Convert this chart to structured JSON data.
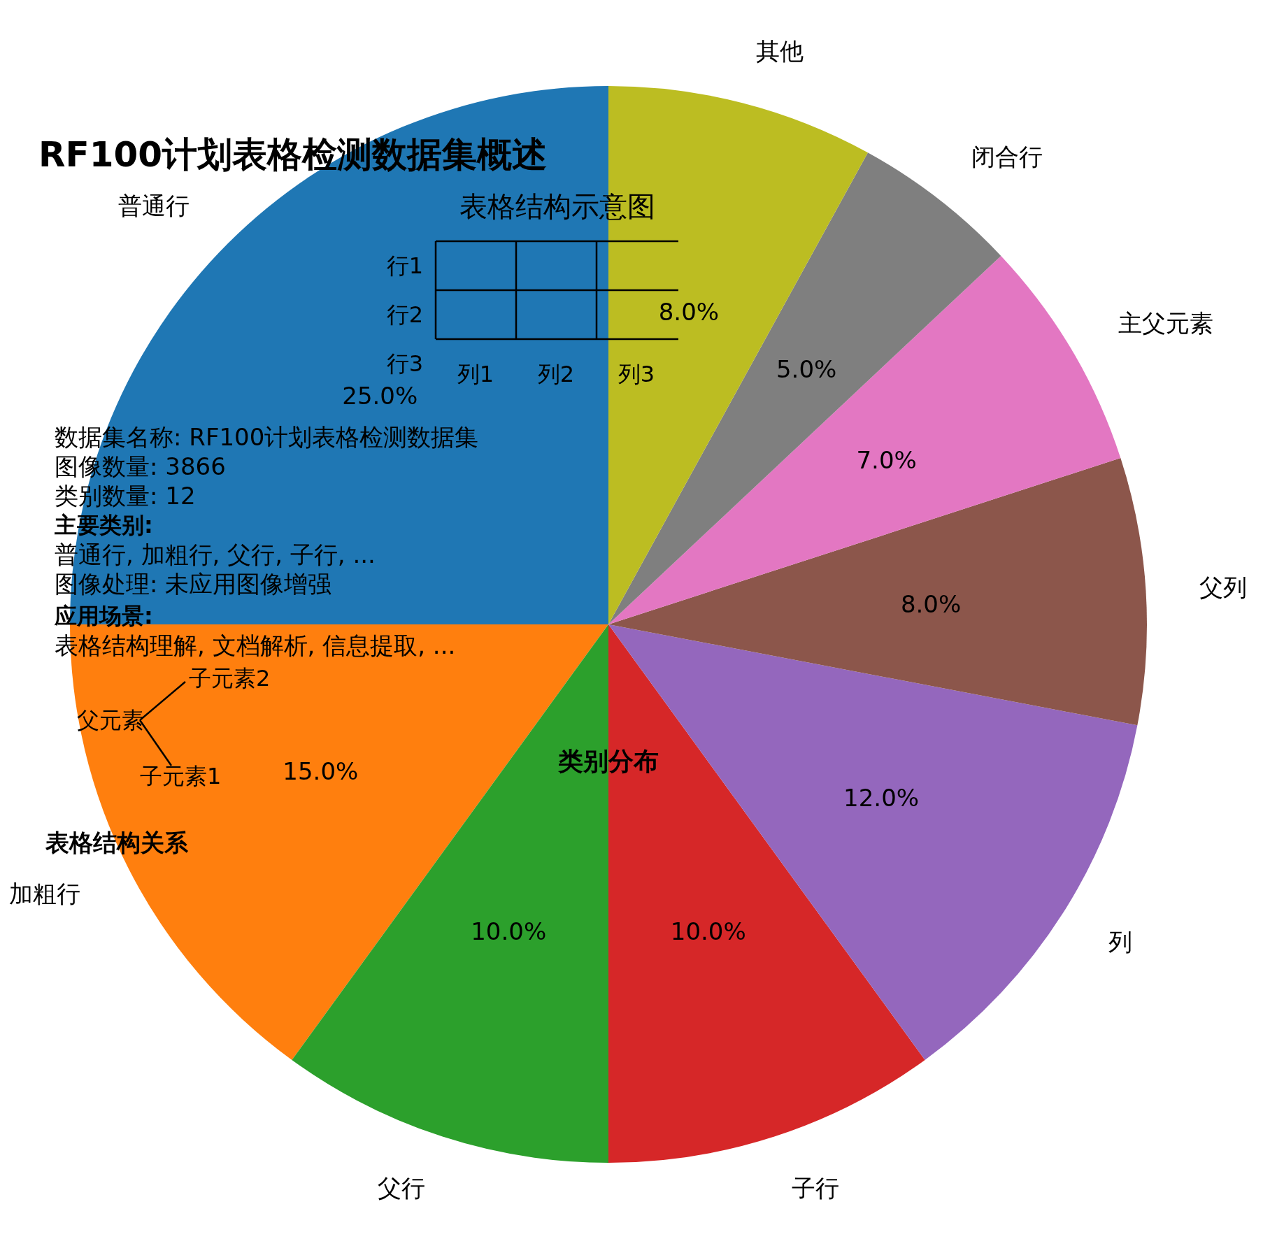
{
  "chart_data": {
    "type": "pie",
    "title": "RF100计划表格检测数据集概述",
    "categories": [
      "普通行",
      "加粗行",
      "父行",
      "子行",
      "列",
      "父列",
      "主父元素",
      "闭合行",
      "其他"
    ],
    "values": [
      25,
      15,
      10,
      10,
      12,
      8,
      7,
      5,
      8
    ],
    "colors": [
      "#1f77b4",
      "#ff7f0e",
      "#2ca02c",
      "#d62728",
      "#9467bd",
      "#8c564b",
      "#e377c2",
      "#7f7f7f",
      "#bcbd22"
    ],
    "value_labels": [
      "25.0%",
      "15.0%",
      "10.0%",
      "10.0%",
      "12.0%",
      "8.0%",
      "7.0%",
      "5.0%",
      "8.0%"
    ],
    "annotations": [
      "表格结构示意图",
      "行1",
      "行2",
      "行3",
      "列1",
      "列2",
      "列3",
      "数据集名称: RF100计划表格检测数据集",
      "图像数量: 3866",
      "类别数量: 12",
      "主要类别:",
      "普通行, 加粗行, 父行, 子行, ...",
      "图像处理: 未应用图像增强",
      "应用场景:",
      "表格结构理解, 文档解析, 信息提取, ...",
      "表格结构关系",
      "父元素",
      "子元素1",
      "子元素2",
      "类别分布"
    ]
  }
}
